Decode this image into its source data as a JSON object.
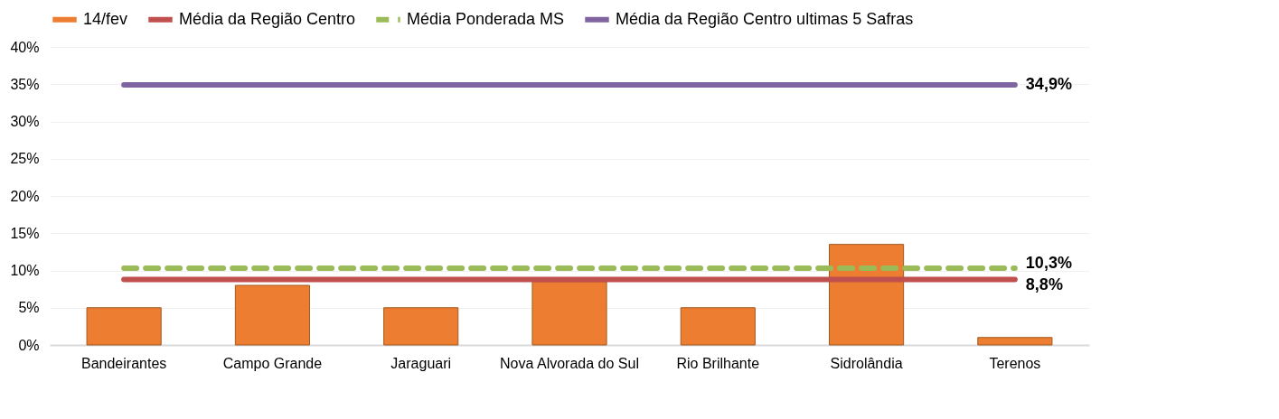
{
  "chart_data": {
    "type": "bar",
    "categories": [
      "Bandeirantes",
      "Campo Grande",
      "Jaraguari",
      "Nova Alvorada do Sul",
      "Rio Brilhante",
      "Sidrolândia",
      "Terenos"
    ],
    "series": [
      {
        "name": "14/fev",
        "color": "#ed7d31",
        "values": [
          5.0,
          8.0,
          5.0,
          8.5,
          5.0,
          13.5,
          1.0
        ]
      },
      {
        "name": "Média da Região Centro",
        "type": "line",
        "color": "#c0504d",
        "line_style": "solid",
        "values": [
          8.8,
          8.8,
          8.8,
          8.8,
          8.8,
          8.8,
          8.8
        ],
        "value_labels": [
          null,
          null,
          null,
          null,
          null,
          null,
          "8,8%"
        ]
      },
      {
        "name": "Média Ponderada MS",
        "type": "line",
        "color": "#9bbb59",
        "line_style": "dashed",
        "values": [
          10.3,
          10.3,
          10.3,
          10.3,
          10.3,
          10.3,
          10.3
        ],
        "value_labels": [
          null,
          null,
          null,
          null,
          null,
          null,
          "10,3%"
        ]
      },
      {
        "name": "Média da Região Centro ultimas 5 Safras",
        "type": "line",
        "color": "#8064a2",
        "line_style": "solid",
        "values": [
          34.9,
          34.9,
          34.9,
          34.9,
          34.9,
          34.9,
          34.9
        ],
        "value_labels": [
          null,
          null,
          null,
          null,
          null,
          null,
          "34,9%"
        ]
      }
    ],
    "ylim": [
      0,
      40
    ],
    "yticks": [
      {
        "value": 0,
        "label": "0%"
      },
      {
        "value": 5,
        "label": "5%"
      },
      {
        "value": 10,
        "label": "10%"
      },
      {
        "value": 15,
        "label": "15%"
      },
      {
        "value": 20,
        "label": "20%"
      },
      {
        "value": 25,
        "label": "25%"
      },
      {
        "value": 30,
        "label": "30%"
      },
      {
        "value": 35,
        "label": "35%"
      },
      {
        "value": 40,
        "label": "40%"
      }
    ],
    "grid": "y",
    "legend": "top"
  }
}
